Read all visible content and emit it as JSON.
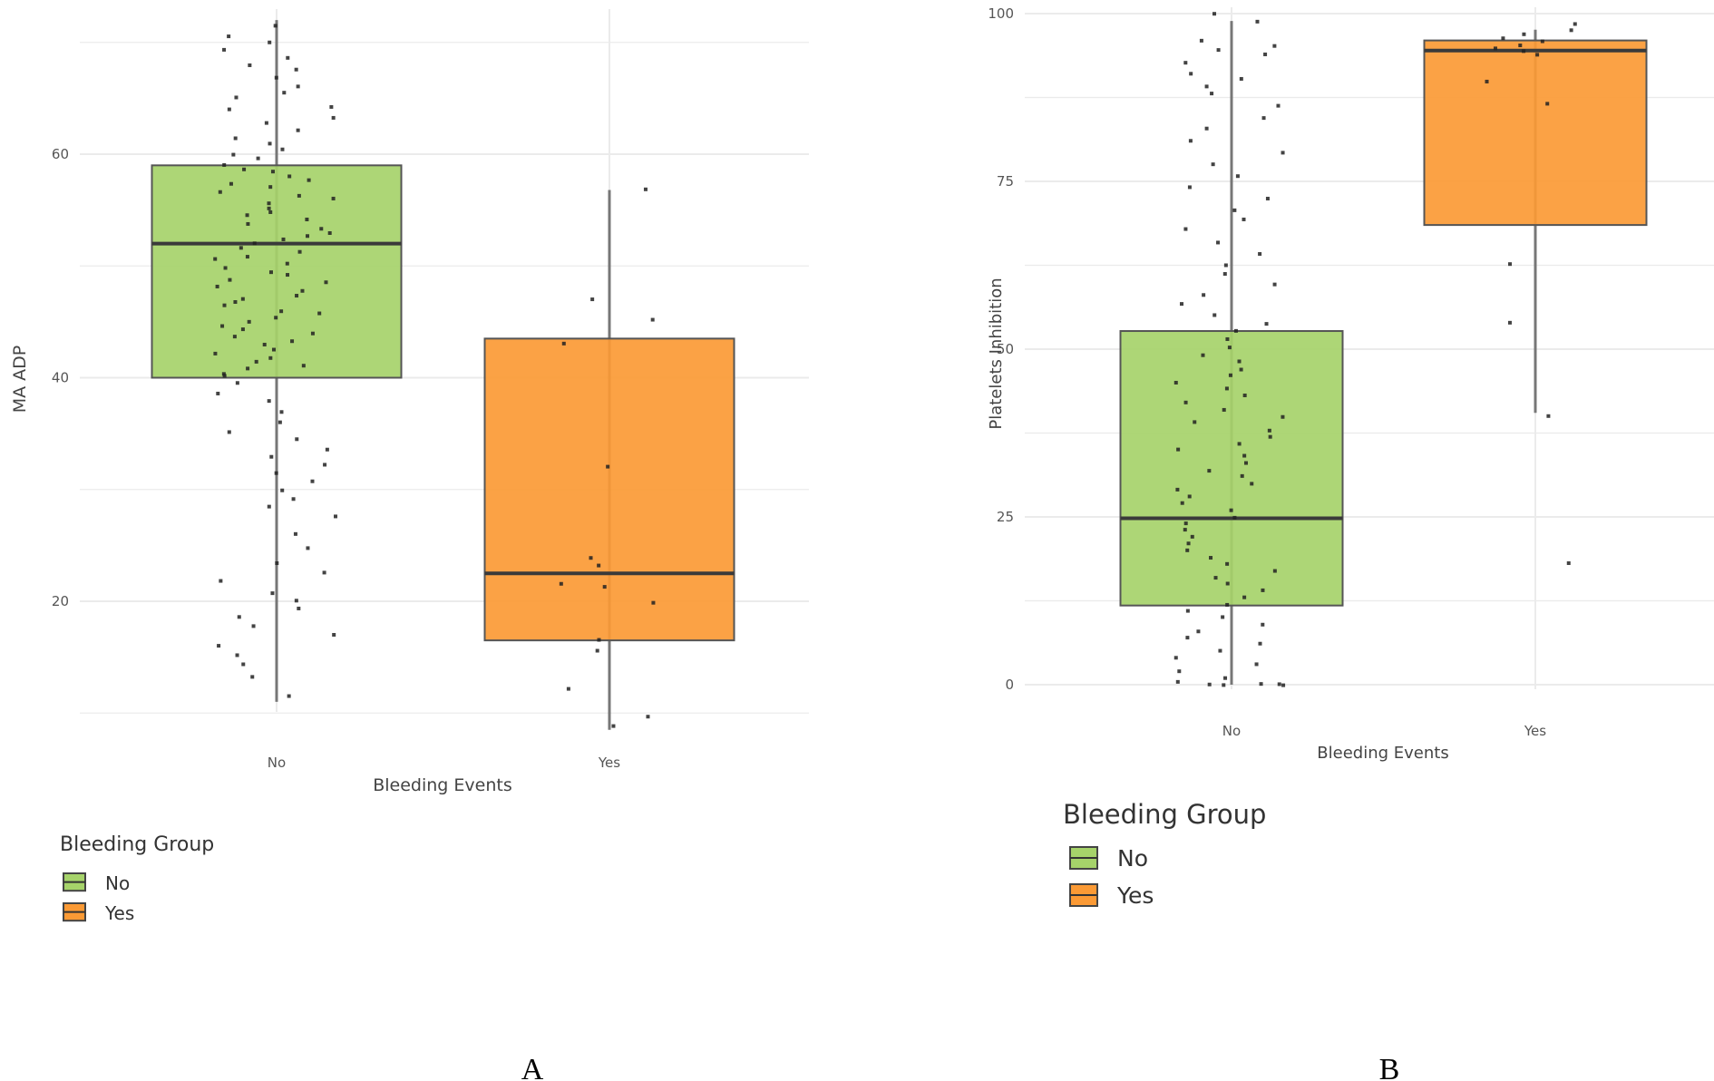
{
  "colors": {
    "no": "#a6d36a",
    "yes": "#fb9a35",
    "grid": "#ebebeb",
    "stroke": "#333333"
  },
  "chart_data": [
    {
      "id": "A",
      "type": "box",
      "panel_label": "A",
      "xlabel": "Bleeding Events",
      "ylabel": "MA ADP",
      "categories": [
        "No",
        "Yes"
      ],
      "ylim": [
        8,
        72
      ],
      "yticks": [
        20,
        40,
        60
      ],
      "legend_title": "Bleeding Group",
      "legend_items": [
        "No",
        "Yes"
      ],
      "boxes": [
        {
          "name": "No",
          "min": 11,
          "q1": 40,
          "median": 52,
          "q3": 59,
          "max": 72
        },
        {
          "name": "Yes",
          "min": 8.5,
          "q1": 16.5,
          "median": 22.5,
          "q3": 43.5,
          "max": 56.8
        }
      ],
      "points": [
        {
          "group": "No",
          "y": [
            71.5,
            70.5,
            70,
            69.4,
            68.6,
            68,
            67.5,
            66.8,
            66,
            65.5,
            65,
            64.3,
            64,
            63.2,
            62.8,
            62.1,
            61.5,
            60.9,
            60.4,
            60,
            59.6,
            59.1,
            58.7,
            58.4,
            58,
            57.7,
            57.3,
            57,
            56.6,
            56.3,
            56,
            55.6,
            55.2,
            54.8,
            54.5,
            54.1,
            53.8,
            53.4,
            53,
            52.7,
            52.3,
            52,
            51.6,
            51.3,
            50.9,
            50.6,
            50.2,
            49.9,
            49.5,
            49.2,
            48.8,
            48.5,
            48.1,
            47.8,
            47.4,
            47.1,
            46.7,
            46.4,
            46,
            45.7,
            45.3,
            45,
            44.6,
            44.3,
            43.9,
            43.6,
            43.2,
            42.9,
            42.5,
            42.2,
            41.8,
            41.5,
            41.1,
            40.8,
            40.4,
            40.1,
            39.5,
            38.6,
            37.9,
            37,
            36,
            35.2,
            34.5,
            33.6,
            33,
            32.2,
            31.5,
            30.8,
            30,
            29.2,
            28.4,
            27.6,
            26,
            24.8,
            23.4,
            22.6,
            21.8,
            20.8,
            20,
            19.3,
            18.6,
            17.7,
            17,
            16,
            15.2,
            14.4,
            13.3,
            11.5
          ]
        },
        {
          "group": "Yes",
          "y": [
            56.8,
            47,
            45.2,
            43,
            32,
            23.2,
            23.8,
            21.6,
            21.3,
            19.8,
            16.5,
            15.5,
            12.2,
            9.6,
            8.8
          ]
        }
      ]
    },
    {
      "id": "B",
      "type": "box",
      "panel_label": "B",
      "xlabel": "Bleeding Events",
      "ylabel": "Platelets Inhibition",
      "categories": [
        "No",
        "Yes"
      ],
      "ylim": [
        0,
        100
      ],
      "yticks": [
        0,
        25,
        50,
        75,
        100
      ],
      "legend_title": "Bleeding Group",
      "legend_items": [
        "No",
        "Yes"
      ],
      "boxes": [
        {
          "name": "No",
          "min": 0,
          "q1": 11.8,
          "median": 24.8,
          "q3": 52.7,
          "max": 98.9
        },
        {
          "name": "Yes",
          "min": 40.5,
          "q1": 68.5,
          "median": 94.5,
          "q3": 96,
          "max": 97.6
        }
      ],
      "points": [
        {
          "group": "No",
          "y": [
            99.9,
            98.8,
            96,
            95.3,
            94.7,
            93.9,
            92.6,
            91.1,
            90.4,
            89.1,
            88,
            86.3,
            84.5,
            82.9,
            81.1,
            79.3,
            77.5,
            75.8,
            74.1,
            72.5,
            70.7,
            69.3,
            67.8,
            66,
            64.3,
            62.6,
            61.1,
            59.6,
            58,
            56.7,
            55.2,
            53.8,
            52.6,
            51.4,
            50.2,
            49.1,
            48.1,
            47,
            46,
            45,
            44,
            43,
            42,
            41,
            40,
            39,
            38,
            37,
            36,
            35,
            34,
            33,
            32,
            31,
            30,
            29,
            28,
            27,
            26,
            25,
            24,
            23,
            22,
            21,
            20,
            19,
            18,
            17,
            16,
            15,
            14,
            13,
            12,
            11,
            10,
            9,
            8,
            7,
            6,
            5,
            4,
            3,
            2,
            1,
            0.5,
            0,
            0,
            0,
            0,
            0
          ]
        },
        {
          "group": "Yes",
          "y": [
            98.5,
            97.5,
            97,
            96.4,
            95.9,
            95.3,
            94.8,
            94.3,
            93.8,
            90,
            86.5,
            62.8,
            54,
            40,
            18
          ]
        }
      ]
    }
  ]
}
